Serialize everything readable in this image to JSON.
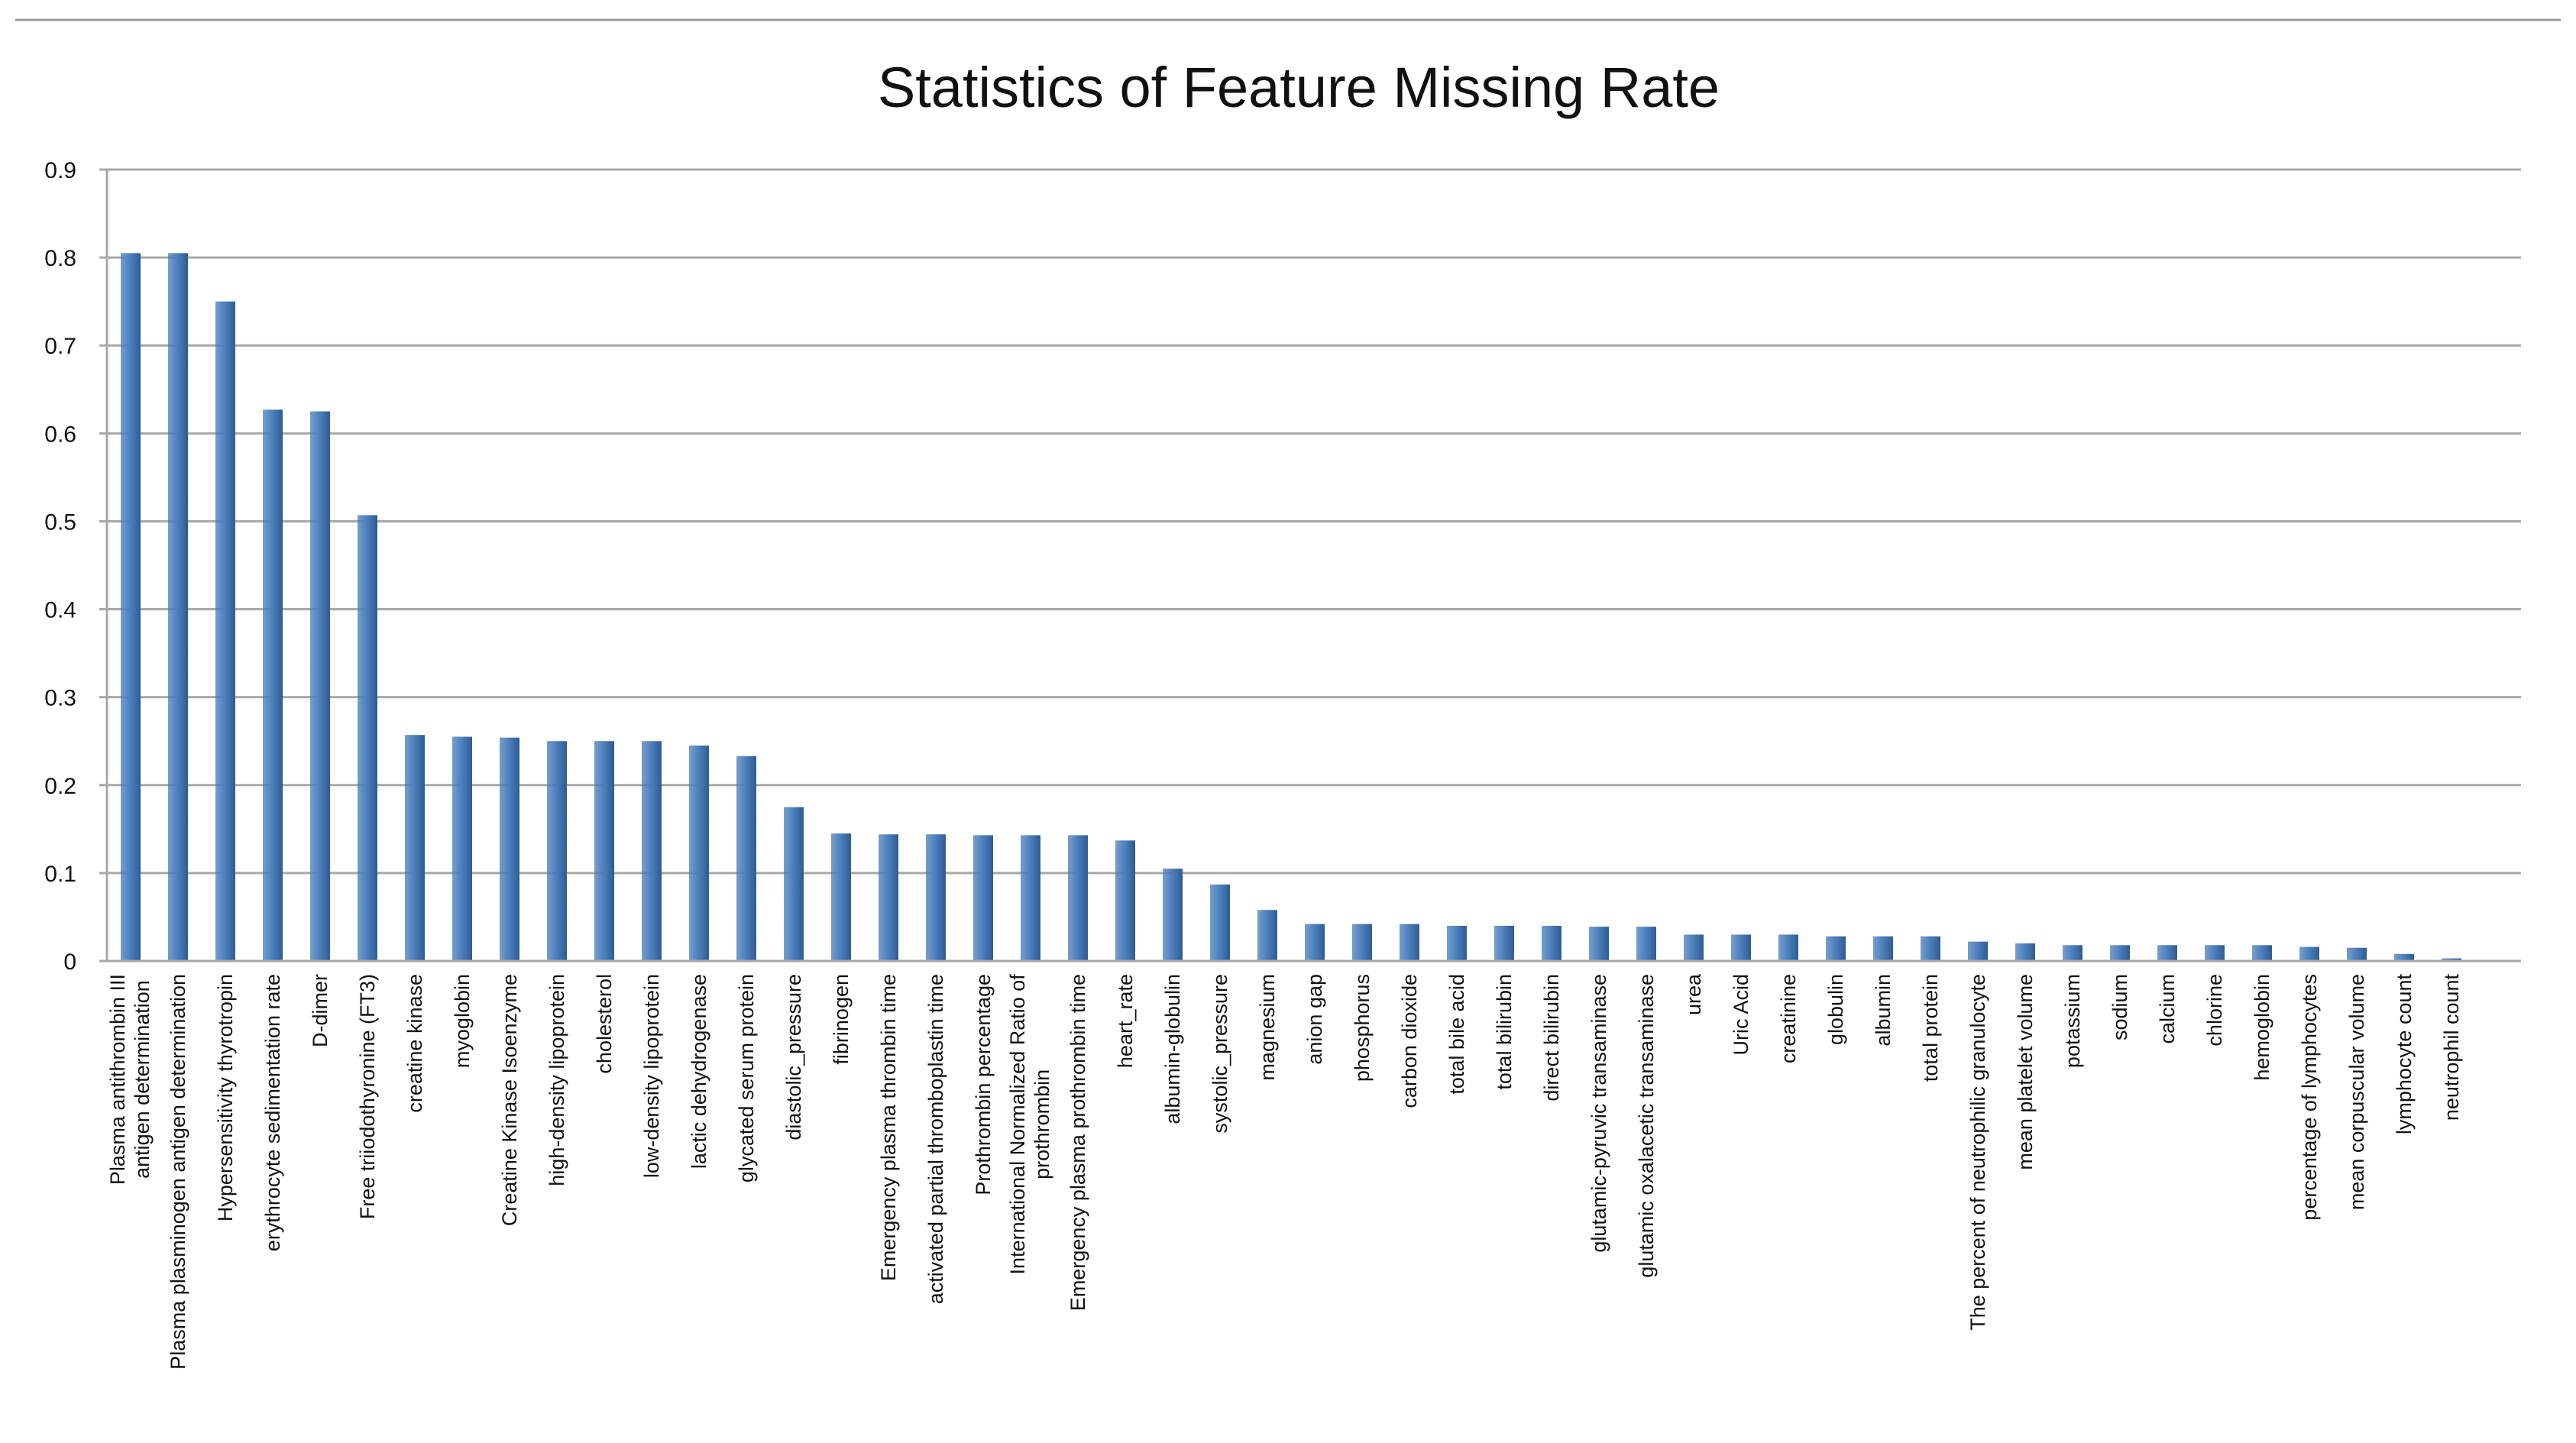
{
  "chart_data": {
    "type": "bar",
    "title": "Statistics of Feature Missing Rate",
    "categories": [
      "Plasma antithrombin III\nantigen determination",
      "Plasma plasminogen antigen determination",
      "Hypersensitivity thyrotropin",
      "erythrocyte sedimentation rate",
      "D-dimer",
      "Free triiodothyronine (FT3)",
      "creatine kinase",
      "myoglobin",
      "Creatine Kinase Isoenzyme",
      "high-density lipoprotein",
      "cholesterol",
      "low-density lipoprotein",
      "lactic dehydrogenase",
      "glycated serum protein",
      "diastolic_pressure",
      "fibrinogen",
      "Emergency plasma thrombin time",
      "activated partial thromboplastin time",
      "Prothrombin percentage",
      "International Normalized Ratio of\nprothrombin",
      "Emergency plasma prothrombin time",
      "heart_rate",
      "albumin-globulin",
      "systolic_pressure",
      "magnesium",
      "anion gap",
      "phosphorus",
      "carbon dioxide",
      "total bile acid",
      "total bilirubin",
      "direct bilirubin",
      "glutamic-pyruvic transaminase",
      "glutamic oxalacetic transaminase",
      "urea",
      "Uric Acid",
      "creatinine",
      "globulin",
      "albumin",
      "total protein",
      "The percent of neutrophilic granulocyte",
      "mean platelet volume",
      "potassium",
      "sodium",
      "calcium",
      "chlorine",
      "hemoglobin",
      "percentage of lymphocytes",
      "mean corpuscular volume",
      "lymphocyte count",
      "neutrophil count"
    ],
    "values": [
      0.805,
      0.805,
      0.75,
      0.627,
      0.625,
      0.507,
      0.257,
      0.255,
      0.254,
      0.25,
      0.25,
      0.25,
      0.245,
      0.233,
      0.175,
      0.145,
      0.144,
      0.144,
      0.143,
      0.143,
      0.143,
      0.137,
      0.105,
      0.087,
      0.058,
      0.042,
      0.042,
      0.042,
      0.04,
      0.04,
      0.04,
      0.039,
      0.039,
      0.03,
      0.03,
      0.03,
      0.028,
      0.028,
      0.028,
      0.022,
      0.02,
      0.018,
      0.018,
      0.018,
      0.018,
      0.018,
      0.016,
      0.015,
      0.008,
      0.003
    ],
    "color": "#4a7ebb",
    "ylim": [
      0,
      0.9
    ],
    "yticks": [
      0,
      0.1,
      0.2,
      0.3,
      0.4,
      0.5,
      0.6,
      0.7,
      0.8,
      0.9
    ],
    "grid": true
  }
}
